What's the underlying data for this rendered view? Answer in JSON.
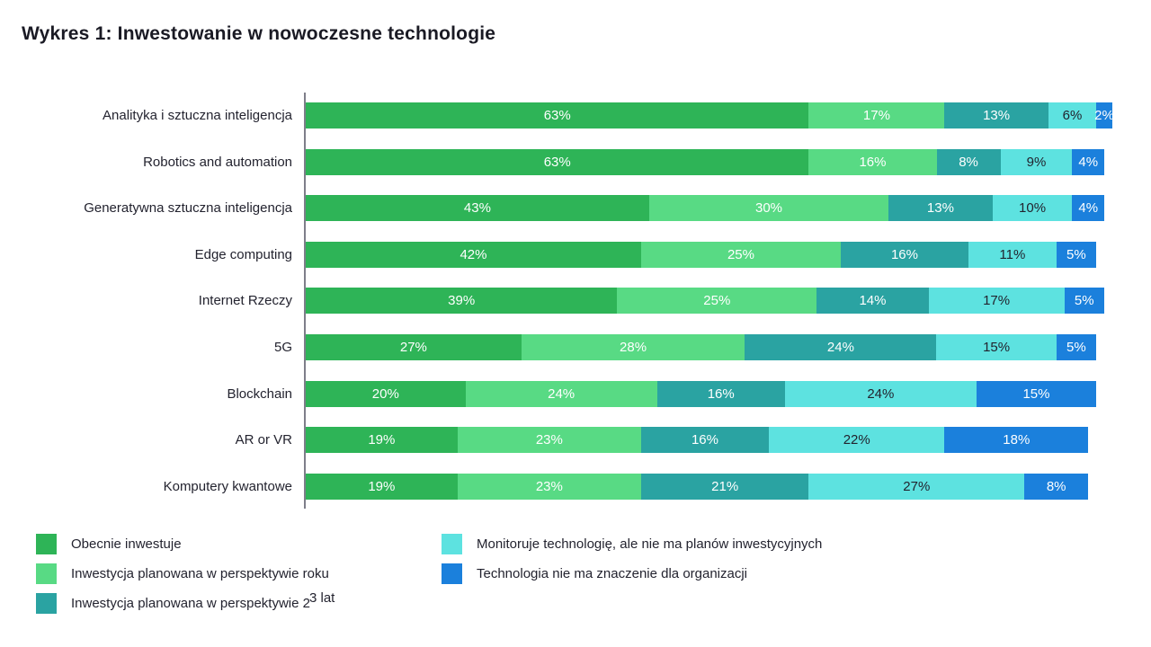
{
  "title": "Wykres 1: Inwestowanie w nowoczesne technologie",
  "colors": {
    "series": [
      "#2eb457",
      "#58da84",
      "#2aa3a2",
      "#5de2e0",
      "#1b80dc"
    ],
    "label_on_dark": "#ffffff",
    "label_on_light": "#22232e",
    "axis_line": "#7e7e8a",
    "text": "#23232f"
  },
  "chart_data": {
    "type": "bar",
    "orientation": "horizontal",
    "stacked": true,
    "title": "Wykres 1: Inwestowanie w nowoczesne technologie",
    "unit": "%",
    "value_suffix": "%",
    "xlim": [
      0,
      101
    ],
    "grid": false,
    "legend_position": "bottom",
    "categories": [
      "Analityka i sztuczna inteligencja",
      "Robotics and automation",
      "Generatywna sztuczna inteligencja",
      "Edge computing",
      "Internet Rzeczy",
      "5G",
      "Blockchain",
      "AR or VR",
      "Komputery kwantowe"
    ],
    "series": [
      {
        "name": "Obecnie inwestuje",
        "values": [
          63,
          63,
          43,
          42,
          39,
          27,
          20,
          19,
          19
        ]
      },
      {
        "name": "Inwestycja planowana w perspektywie roku",
        "values": [
          17,
          16,
          30,
          25,
          25,
          28,
          24,
          23,
          23
        ]
      },
      {
        "name": "Inwestycja planowana w perspektywie 2-3 lat",
        "values": [
          13,
          8,
          13,
          16,
          14,
          24,
          16,
          16,
          21
        ]
      },
      {
        "name": "Monitoruje technologię, ale nie ma planów inwestycyjnych",
        "values": [
          6,
          9,
          10,
          11,
          17,
          15,
          24,
          22,
          27
        ]
      },
      {
        "name": "Technologia nie ma znaczenie dla organizacji",
        "values": [
          2,
          4,
          4,
          5,
          5,
          5,
          15,
          18,
          8
        ]
      }
    ]
  },
  "legend": {
    "items": [
      {
        "label": "Obecnie inwestuje"
      },
      {
        "label": "Inwestycja planowana w perspektywie roku"
      },
      {
        "label": "Inwestycja planowana w perspektywie 2",
        "label_sup": "3 lat"
      },
      {
        "label": "Monitoruje technologię, ale nie ma planów inwestycyjnych"
      },
      {
        "label": "Technologia nie ma znaczenie dla organizacji"
      }
    ]
  }
}
